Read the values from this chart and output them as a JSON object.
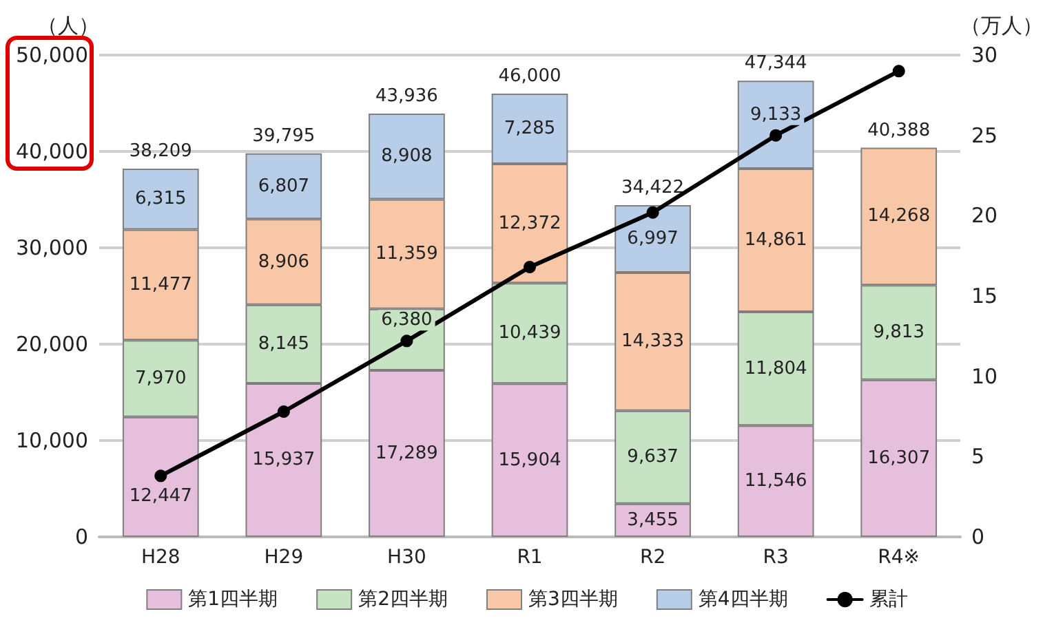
{
  "chart_data": {
    "type": "bar",
    "stacked": true,
    "ylabel": "（人）",
    "y2label": "（万人）",
    "categories": [
      "H28",
      "H29",
      "H30",
      "R1",
      "R2",
      "R3",
      "R4※"
    ],
    "series": [
      {
        "name": "第1四半期",
        "color": "#e6bfdd",
        "values": [
          12447,
          15937,
          17289,
          15904,
          3455,
          11546,
          16307
        ],
        "value_labels": [
          "12,447",
          "15,937",
          "17,289",
          "15,904",
          "3,455",
          "11,546",
          "16,307"
        ]
      },
      {
        "name": "第2四半期",
        "color": "#c6e4c3",
        "values": [
          7970,
          8145,
          6380,
          10439,
          9637,
          11804,
          9813
        ],
        "value_labels": [
          "7,970",
          "8,145",
          "6,380",
          "10,439",
          "9,637",
          "11,804",
          "9,813"
        ]
      },
      {
        "name": "第3四半期",
        "color": "#f8c7a8",
        "values": [
          11477,
          8906,
          11359,
          12372,
          14333,
          14861,
          14268
        ],
        "value_labels": [
          "11,477",
          "8,906",
          "11,359",
          "12,372",
          "14,333",
          "14,861",
          "14,268"
        ]
      },
      {
        "name": "第4四半期",
        "color": "#b7cde8",
        "values": [
          6315,
          6807,
          8908,
          7285,
          6997,
          9133,
          null
        ],
        "value_labels": [
          "6,315",
          "6,807",
          "8,908",
          "7,285",
          "6,997",
          "9,133",
          null
        ]
      },
      {
        "name": "累計",
        "type": "line",
        "axis": "y2",
        "color": "#000000",
        "marker": "circle",
        "values": [
          3.8,
          7.8,
          12.2,
          16.8,
          20.2,
          25.0,
          29.0
        ]
      }
    ],
    "totals": [
      "38,209",
      "39,795",
      "43,936",
      "46,000",
      "34,422",
      "47,344",
      "40,388"
    ],
    "ylim": [
      0,
      50000
    ],
    "yticks": [
      0,
      {
        "value": 10000,
        "label": "10,000"
      },
      {
        "value": 20000,
        "label": "20,000"
      },
      {
        "value": 30000,
        "label": "30,000"
      },
      {
        "value": 40000,
        "label": "40,000"
      },
      {
        "value": 50000,
        "label": "50,000"
      }
    ],
    "y2lim": [
      0,
      30
    ],
    "y2ticks": [
      0,
      5,
      10,
      15,
      20,
      25,
      30
    ],
    "grid": "y",
    "legend": "bottom"
  }
}
